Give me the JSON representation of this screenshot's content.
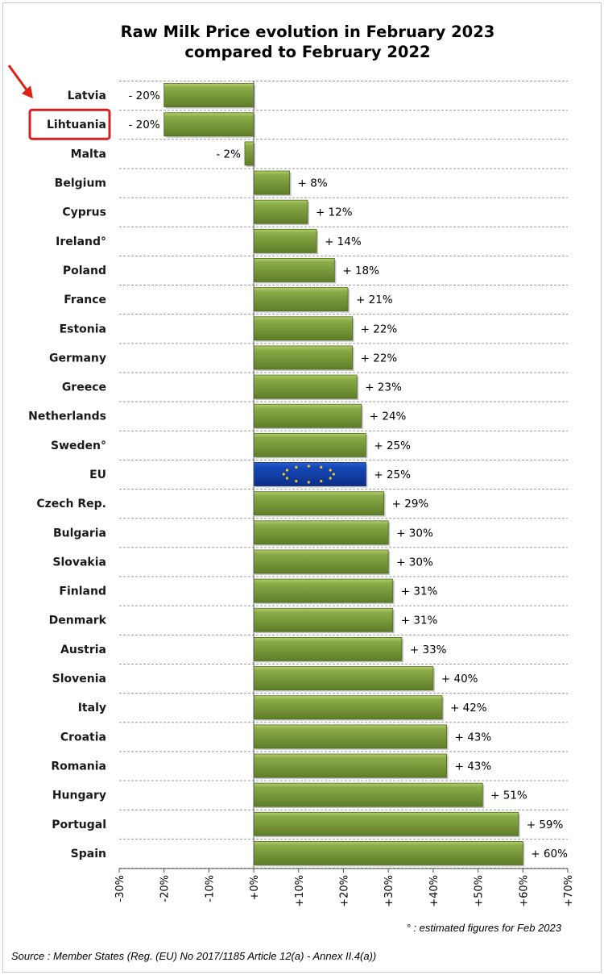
{
  "chart_data": {
    "type": "bar",
    "orientation": "horizontal",
    "title": [
      "Raw Milk Price evolution in February 2023",
      "compared to February 2022"
    ],
    "categories": [
      "Latvia",
      "Lihtuania",
      "Malta",
      "Belgium",
      "Cyprus",
      "Ireland°",
      "Poland",
      "France",
      "Estonia",
      "Germany",
      "Greece",
      "Netherlands",
      "Sweden°",
      "EU",
      "Czech Rep.",
      "Bulgaria",
      "Slovakia",
      "Finland",
      "Denmark",
      "Austria",
      "Slovenia",
      "Italy",
      "Croatia",
      "Romania",
      "Hungary",
      "Portugal",
      "Spain"
    ],
    "values": [
      -20,
      -20,
      -2,
      8,
      12,
      14,
      18,
      21,
      22,
      22,
      23,
      24,
      25,
      25,
      29,
      30,
      30,
      31,
      31,
      33,
      40,
      42,
      43,
      43,
      51,
      59,
      60
    ],
    "value_labels": [
      "- 20%",
      "- 20%",
      "- 2%",
      "+ 8%",
      "+ 12%",
      "+ 14%",
      "+ 18%",
      "+ 21%",
      "+ 22%",
      "+ 22%",
      "+ 23%",
      "+ 24%",
      "+ 25%",
      "+ 25%",
      "+ 29%",
      "+ 30%",
      "+ 30%",
      "+ 31%",
      "+ 31%",
      "+ 33%",
      "+ 40%",
      "+ 42%",
      "+ 43%",
      "+ 43%",
      "+ 51%",
      "+ 59%",
      "+ 60%"
    ],
    "xlim": [
      -30,
      70
    ],
    "xticks": [
      "-30%",
      "-20%",
      "-10%",
      "+0%",
      "+10%",
      "+20%",
      "+30%",
      "+40%",
      "+50%",
      "+60%",
      "+70%"
    ],
    "highlighted_category": "EU",
    "boxed_category": "Lihtuania",
    "arrow_target": "Latvia",
    "grid": true,
    "colors": {
      "bar": "#77963a",
      "bar_highlight": "#a6c45c",
      "bar_shadow": "#4e6a20",
      "eu_bar": "#1240a8",
      "eu_stars": "#f2cc1c",
      "box": "#d62020",
      "arrow": "#e02010",
      "grid": "#9a9a9a"
    }
  },
  "footnote": "° : estimated figures for Feb 2023",
  "source": "Source : Member States (Reg. (EU) No 2017/1185 Article 12(a) - Annex II.4(a))"
}
